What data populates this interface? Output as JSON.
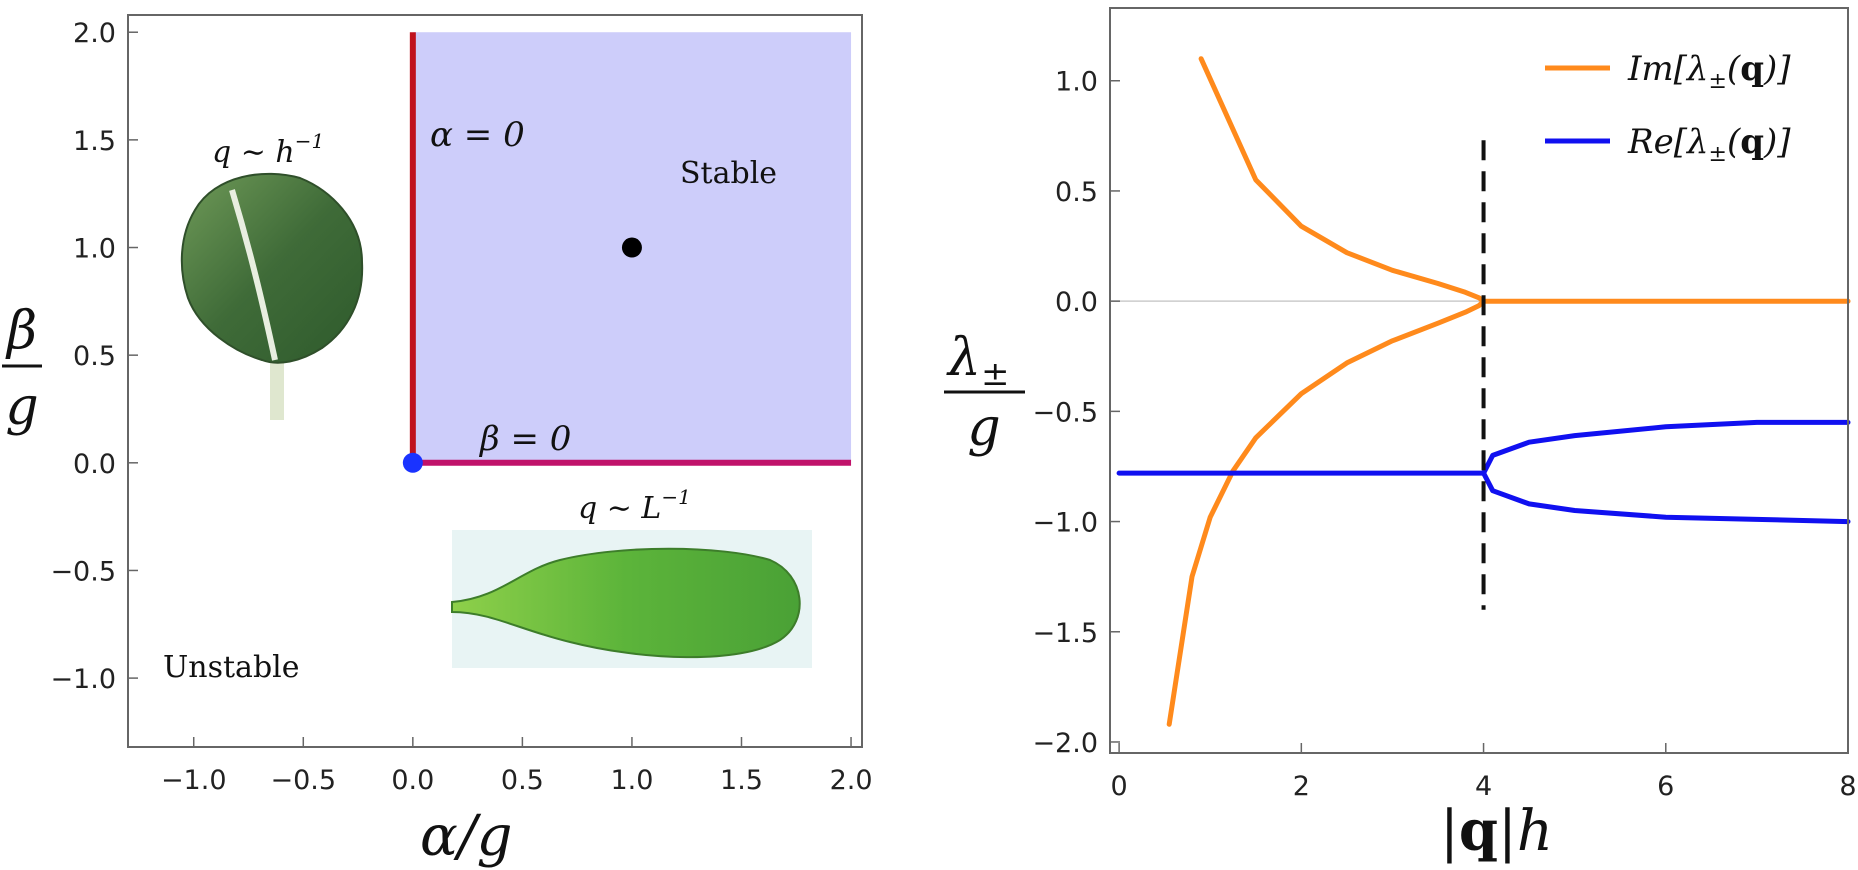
{
  "chart_data": [
    {
      "type": "scatter",
      "xlabel": "α/g",
      "ylabel": "β/g",
      "xlim": [
        -1.3,
        2.05
      ],
      "ylim": [
        -1.32,
        2.08
      ],
      "xticks": [
        "−1.0",
        "−0.5",
        "0.0",
        "0.5",
        "1.0",
        "1.5",
        "2.0"
      ],
      "yticks": [
        "2.0",
        "1.5",
        "1.0",
        "0.5",
        "0.0",
        "−0.5",
        "−1.0"
      ],
      "stable_region": {
        "x": [
          0,
          2
        ],
        "y": [
          0,
          2
        ],
        "color": "#cdcdfa"
      },
      "boundaries": [
        {
          "label": "α = 0",
          "x": [
            0,
            0
          ],
          "y": [
            0,
            2
          ],
          "color": "#c0121e"
        },
        {
          "label": "β = 0",
          "x": [
            0,
            2
          ],
          "y": [
            0,
            0
          ],
          "color": "#c0126a"
        }
      ],
      "points": [
        {
          "x": 1.0,
          "y": 1.0,
          "color": "#000000"
        },
        {
          "x": 0.0,
          "y": 0.0,
          "color": "#1a33ff"
        }
      ],
      "annotations": {
        "stable": "Stable",
        "unstable": "Unstable",
        "leaf_top": "q ∼ h⁻¹",
        "leaf_bottom": "q ∼ L⁻¹"
      },
      "grid": false
    },
    {
      "type": "line",
      "xlabel": "|q|h",
      "ylabel": "λ±/g",
      "xlim": [
        -0.1,
        8.0
      ],
      "ylim": [
        -2.05,
        1.33
      ],
      "xticks": [
        "0",
        "2",
        "4",
        "6",
        "8"
      ],
      "yticks": [
        "1.0",
        "0.5",
        "0.0",
        "−0.5",
        "−1.0",
        "−1.5",
        "−2.0"
      ],
      "series": [
        {
          "name": "Im[λ±(q)]",
          "color": "#ff8a1c",
          "branch_upper": {
            "x": [
              0.9,
              1.5,
              2.0,
              2.5,
              3.0,
              3.5,
              3.8,
              3.95,
              4.0
            ],
            "y": [
              1.1,
              0.55,
              0.34,
              0.22,
              0.14,
              0.08,
              0.04,
              0.015,
              0.0
            ]
          },
          "branch_lower": {
            "x": [
              0.55,
              0.8,
              1.0,
              1.25,
              1.5,
              2.0,
              2.5,
              3.0,
              3.5,
              3.8,
              3.95,
              4.0
            ],
            "y": [
              -1.92,
              -1.25,
              -0.98,
              -0.77,
              -0.62,
              -0.42,
              -0.28,
              -0.18,
              -0.1,
              -0.05,
              -0.02,
              0.0
            ]
          },
          "branch_flat": {
            "x": [
              4.0,
              8.0
            ],
            "y": [
              0.0,
              0.0
            ]
          }
        },
        {
          "name": "Re[λ±(q)]",
          "color": "#1010f0",
          "branch_flat": {
            "x": [
              0.0,
              4.0
            ],
            "y": [
              -0.78,
              -0.78
            ]
          },
          "branch_upper": {
            "x": [
              4.0,
              4.1,
              4.5,
              5.0,
              6.0,
              7.0,
              8.0
            ],
            "y": [
              -0.78,
              -0.7,
              -0.64,
              -0.61,
              -0.57,
              -0.55,
              -0.55
            ]
          },
          "branch_lower": {
            "x": [
              4.0,
              4.1,
              4.5,
              5.0,
              6.0,
              7.0,
              8.0
            ],
            "y": [
              -0.78,
              -0.86,
              -0.92,
              -0.95,
              -0.98,
              -0.99,
              -1.0
            ]
          }
        }
      ],
      "critical_line": {
        "x": 4.0,
        "y_range": [
          -1.4,
          0.73
        ],
        "style": "dashed"
      },
      "legend_placement": "top-right",
      "grid": false
    }
  ]
}
